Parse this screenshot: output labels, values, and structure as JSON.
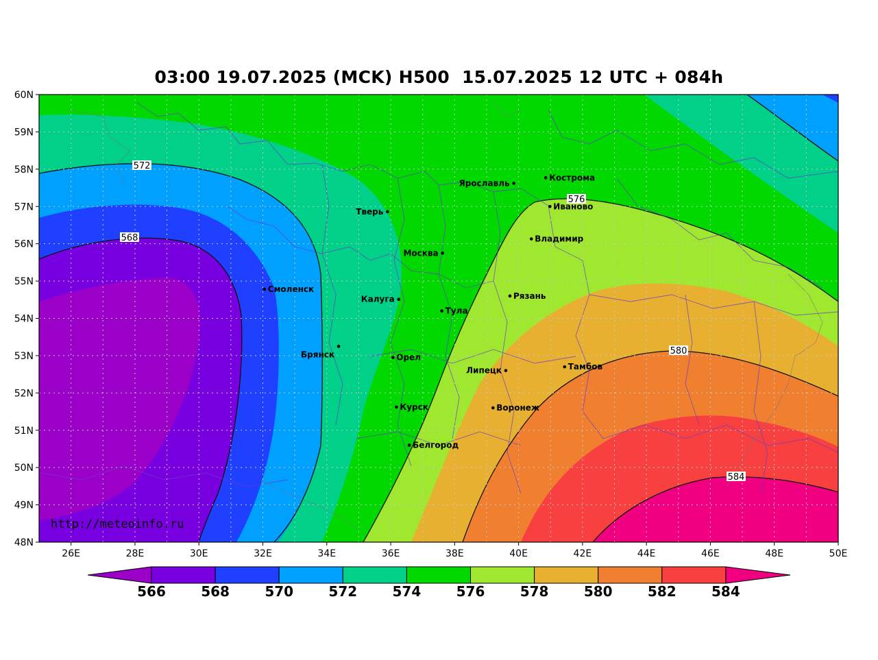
{
  "title": "03:00 19.07.2025 (MCK) H500  15.07.2025 12 UTC + 084h",
  "watermark": "http://meteoinfo.ru",
  "lat_ticks": [
    "60N",
    "59N",
    "58N",
    "57N",
    "56N",
    "55N",
    "54N",
    "53N",
    "52N",
    "51N",
    "50N",
    "49N",
    "48N"
  ],
  "lon_ticks": [
    "26E",
    "28E",
    "30E",
    "32E",
    "34E",
    "36E",
    "38E",
    "40E",
    "42E",
    "44E",
    "46E",
    "48E",
    "50E"
  ],
  "cities": [
    {
      "name": "Кострома",
      "lon": 40.85,
      "lat": 57.77
    },
    {
      "name": "Ярославль",
      "lon": 39.85,
      "lat": 57.62
    },
    {
      "name": "Иваново",
      "lon": 40.98,
      "lat": 57.0
    },
    {
      "name": "Тверь",
      "lon": 35.9,
      "lat": 56.86
    },
    {
      "name": "Владимир",
      "lon": 40.4,
      "lat": 56.13
    },
    {
      "name": "Москва",
      "lon": 37.62,
      "lat": 55.75
    },
    {
      "name": "Смоленск",
      "lon": 32.05,
      "lat": 54.78
    },
    {
      "name": "Рязань",
      "lon": 39.73,
      "lat": 54.6
    },
    {
      "name": "Калуга",
      "lon": 36.25,
      "lat": 54.51
    },
    {
      "name": "Тула",
      "lon": 37.6,
      "lat": 54.2
    },
    {
      "name": "Брянск",
      "lon": 34.37,
      "lat": 53.25
    },
    {
      "name": "Орел",
      "lon": 36.07,
      "lat": 52.95
    },
    {
      "name": "Липецк",
      "lon": 39.6,
      "lat": 52.6
    },
    {
      "name": "Тамбов",
      "lon": 41.44,
      "lat": 52.7
    },
    {
      "name": "Курск",
      "lon": 36.18,
      "lat": 51.62
    },
    {
      "name": "Воронеж",
      "lon": 39.2,
      "lat": 51.6
    },
    {
      "name": "Белгород",
      "lon": 36.58,
      "lat": 50.6
    }
  ],
  "contour_labels": [
    "572",
    "568",
    "576",
    "580",
    "584"
  ],
  "colorbar": {
    "labels": [
      "566",
      "568",
      "570",
      "572",
      "574",
      "576",
      "578",
      "580",
      "582",
      "584"
    ],
    "colors": [
      "#9a00c8",
      "#7800e0",
      "#2040ff",
      "#00a0ff",
      "#00d088",
      "#00d800",
      "#a0e830",
      "#e8b030",
      "#f08030",
      "#f84040",
      "#f00080"
    ]
  },
  "palette": {
    "c564": "#9a00c8",
    "c566": "#7800e0",
    "c568": "#2040ff",
    "c570": "#00a0ff",
    "c572": "#00d088",
    "c574": "#00d800",
    "c576": "#a0e830",
    "c578": "#e8b030",
    "c580": "#f08030",
    "c582": "#f84040",
    "c584": "#f00080"
  }
}
